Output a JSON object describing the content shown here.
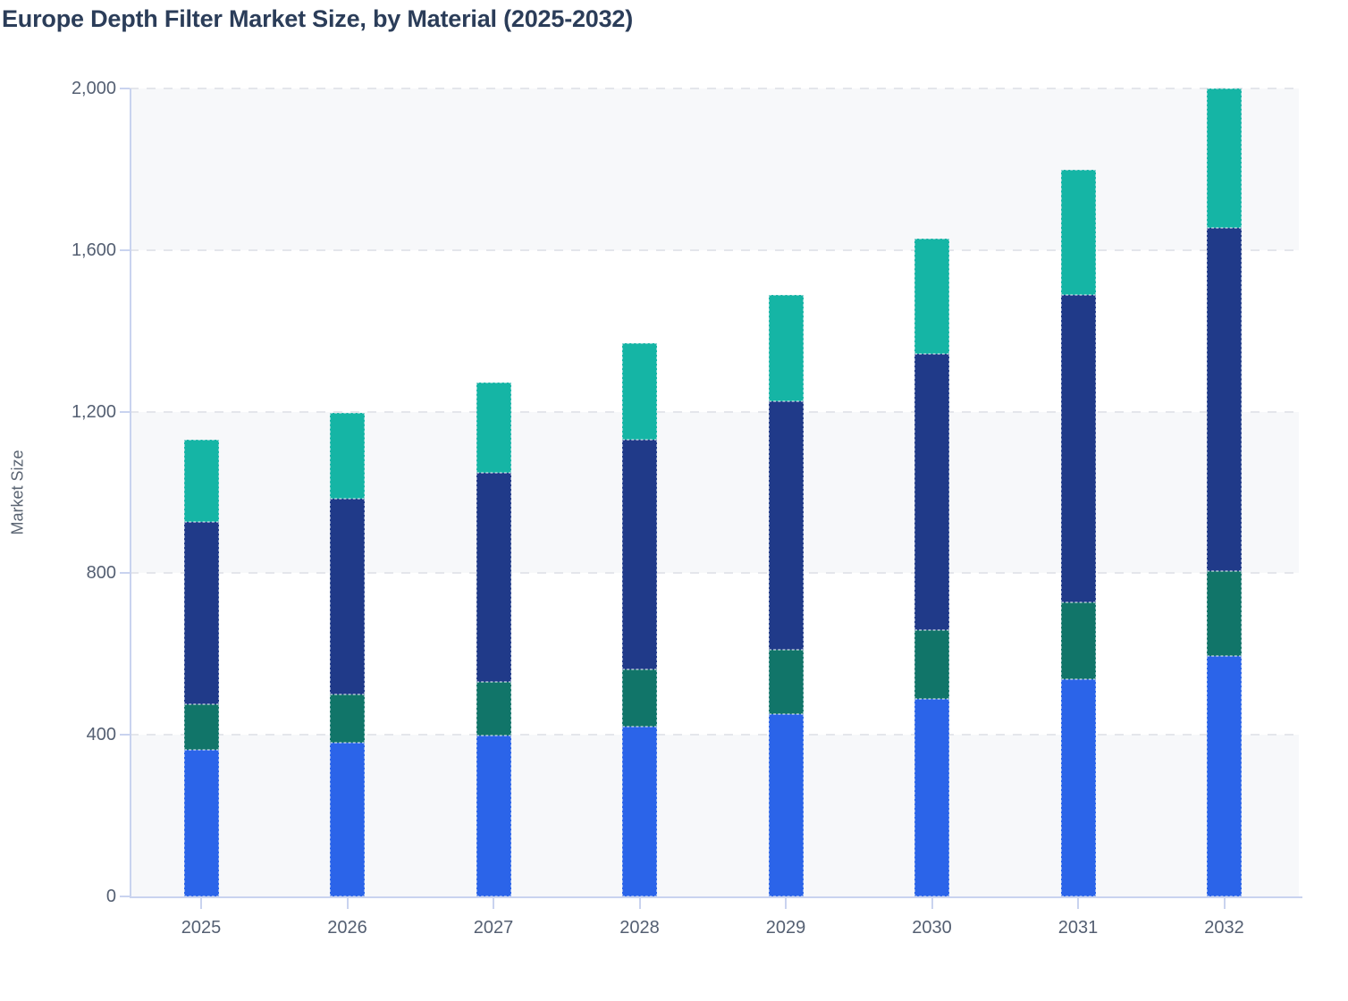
{
  "page": {
    "title": "Europe Depth Filter Market Size, by Material (2025-2032)"
  },
  "chart_data": {
    "type": "bar",
    "stacked": true,
    "title": "Europe Depth Filter Market Size, by Material (2025-2032)",
    "xlabel": "",
    "ylabel": "Market Size",
    "ylim": [
      0,
      2000
    ],
    "yticks": {
      "values": [
        0,
        400,
        800,
        1200,
        1600,
        2000
      ],
      "labels": [
        "0",
        "400",
        "800",
        "1,200",
        "1,600",
        "2,000"
      ]
    },
    "categories": [
      "2025",
      "2026",
      "2027",
      "2028",
      "2029",
      "2030",
      "2031",
      "2032"
    ],
    "series": [
      {
        "name": "bottom-segment-blue",
        "color": "#2b64e9",
        "values": [
          362,
          380,
          398,
          420,
          452,
          490,
          537,
          595
        ]
      },
      {
        "name": "second-segment-dark-teal",
        "color": "#117569",
        "values": [
          114,
          120,
          132,
          143,
          158,
          170,
          190,
          210
        ]
      },
      {
        "name": "third-segment-navy",
        "color": "#203a89",
        "values": [
          452,
          484,
          518,
          567,
          615,
          682,
          761,
          850
        ]
      },
      {
        "name": "top-segment-teal",
        "color": "#15b5a5",
        "values": [
          202,
          213,
          224,
          240,
          263,
          286,
          310,
          345
        ]
      }
    ],
    "totals": [
      1130,
      1197,
      1272,
      1370,
      1488,
      1628,
      1798,
      2000
    ],
    "legend_position": "none",
    "grid": {
      "horizontal": "dashed",
      "alternating_bands": true
    }
  },
  "style": {
    "band_color": "#f7f8fa",
    "grid_color": "#e4e6eb",
    "axis_color": "#c9d3ef",
    "tick_text_color": "#545f72",
    "title_color": "#2b3d59"
  }
}
